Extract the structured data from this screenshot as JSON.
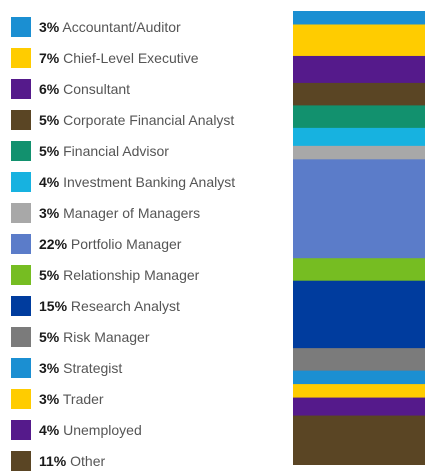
{
  "chart_data": {
    "type": "bar",
    "stacked": true,
    "orientation": "vertical",
    "unit": "%",
    "categories": [
      "Accountant/Auditor",
      "Chief-Level Executive",
      "Consultant",
      "Corporate Financial Analyst",
      "Financial Advisor",
      "Investment Banking Analyst",
      "Manager of Managers",
      "Portfolio Manager",
      "Relationship Manager",
      "Research Analyst",
      "Risk Manager",
      "Strategist",
      "Trader",
      "Unemployed",
      "Other"
    ],
    "values": [
      3,
      7,
      6,
      5,
      5,
      4,
      3,
      22,
      5,
      15,
      5,
      3,
      3,
      4,
      11
    ],
    "labels": [
      "3%",
      "7%",
      "6%",
      "5%",
      "5%",
      "4%",
      "3%",
      "22%",
      "5%",
      "15%",
      "5%",
      "3%",
      "3%",
      "4%",
      "11%"
    ],
    "colors": [
      "#1b8fd2",
      "#ffcc00",
      "#551a8b",
      "#5a4524",
      "#12916e",
      "#17b2e0",
      "#a8a8a8",
      "#5b7cc9",
      "#76bd22",
      "#003c9e",
      "#7b7b7b",
      "#1b8fd2",
      "#ffcc00",
      "#551a8b",
      "#5a4524"
    ],
    "legend_position": "left",
    "grid": false,
    "title": "",
    "xlabel": "",
    "ylabel": ""
  }
}
